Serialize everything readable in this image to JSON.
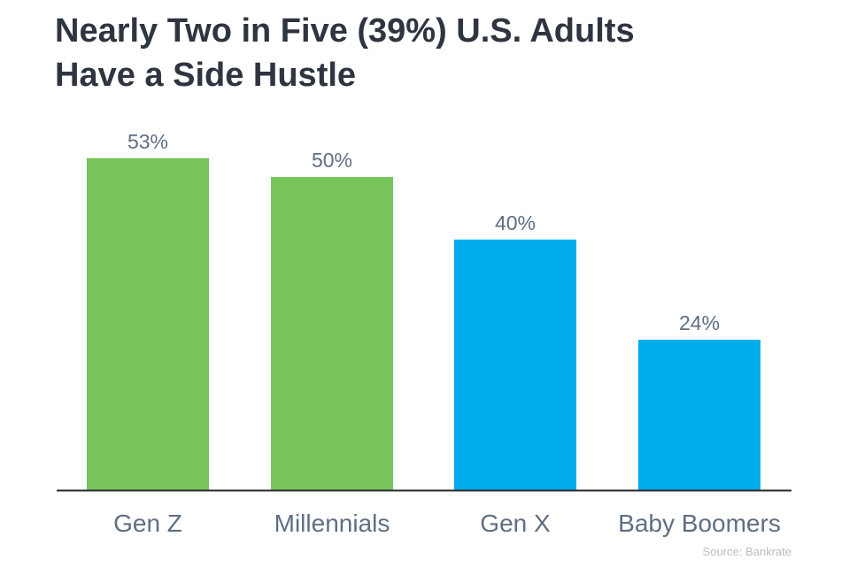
{
  "title_line1": "Nearly Two in Five (39%) U.S. Adults",
  "title_line2": "Have a Side Hustle",
  "source": "Source: Bankrate",
  "colors": {
    "green": "#76c45a",
    "blue": "#00acec",
    "axis": "#2a2a2a",
    "category_text": "#5f6f82",
    "value_text": "#5f6f82"
  },
  "chart_data": {
    "type": "bar",
    "categories": [
      "Gen Z",
      "Millennials",
      "Gen X",
      "Baby Boomers"
    ],
    "values": [
      53,
      50,
      40,
      24
    ],
    "value_labels": [
      "53%",
      "50%",
      "40%",
      "24%"
    ],
    "bar_colors": [
      "#76c45a",
      "#76c45a",
      "#00acec",
      "#00acec"
    ],
    "ylim": [
      0,
      100
    ],
    "grid": false,
    "title": "Nearly Two in Five (39%) U.S. Adults Have a Side Hustle"
  }
}
